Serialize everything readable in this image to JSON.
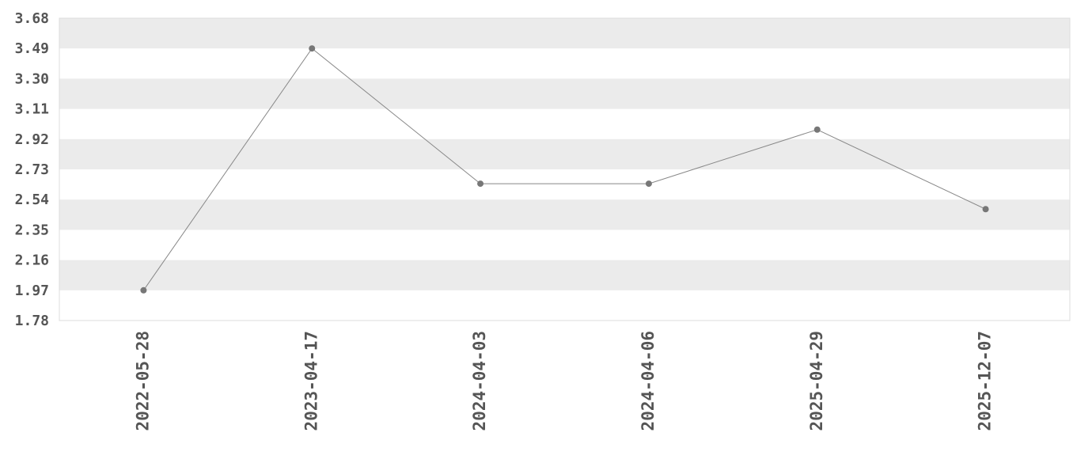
{
  "chart_data": {
    "type": "line",
    "title": "",
    "xlabel": "",
    "ylabel": "",
    "categories": [
      "2022-05-28",
      "2023-04-17",
      "2024-04-03",
      "2024-04-06",
      "2025-04-29",
      "2025-12-07"
    ],
    "values": [
      1.97,
      3.49,
      2.64,
      2.64,
      2.98,
      2.48
    ],
    "ylim": [
      1.78,
      3.68
    ],
    "yticks": [
      "1.78",
      "1.97",
      "2.16",
      "2.35",
      "2.54",
      "2.73",
      "2.92",
      "3.11",
      "3.30",
      "3.49",
      "3.68"
    ],
    "grid": "alternating horizontal bands",
    "legend": "none",
    "colors": {
      "line": "#888888",
      "marker": "#777777",
      "band": "#ebebeb",
      "text": "#555555",
      "border": "#dddddd"
    }
  }
}
